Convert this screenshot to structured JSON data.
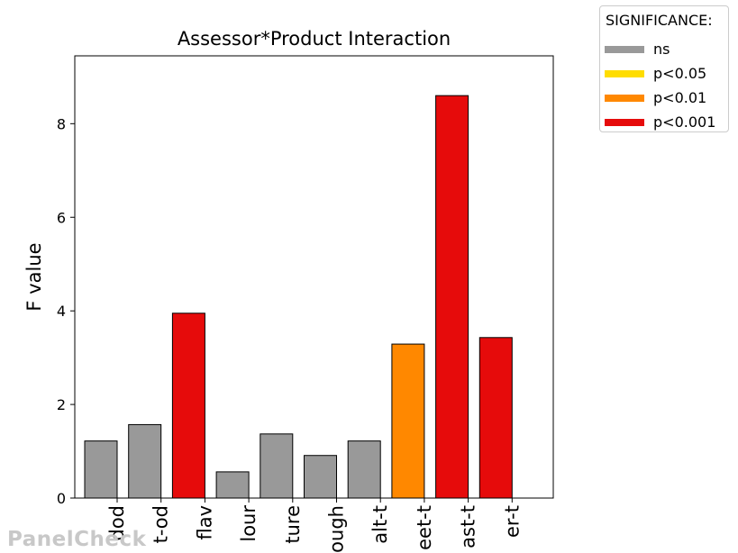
{
  "chart_data": {
    "type": "bar",
    "title": "Assessor*Product Interaction",
    "xlabel": "",
    "ylabel": "F value",
    "ylim": [
      0,
      9.45
    ],
    "yticks": [
      0,
      2,
      4,
      6,
      8
    ],
    "categories": [
      "...dod",
      "...t-od",
      "...flav",
      "...lour",
      "...ture",
      "...ough",
      "...alt-t",
      "...eet-t",
      "...ast-t",
      "...er-t"
    ],
    "tick_labels_visible": [
      "dod",
      "t-od",
      "flav",
      "lour",
      "ture",
      "ough",
      "alt-t",
      "eet-t",
      "ast-t",
      "er-t"
    ],
    "values": [
      1.22,
      1.57,
      3.95,
      0.56,
      1.37,
      0.91,
      1.22,
      3.29,
      8.6,
      3.43
    ],
    "significance": [
      "ns",
      "ns",
      "p<0.001",
      "ns",
      "ns",
      "ns",
      "ns",
      "p<0.01",
      "p<0.001",
      "p<0.001"
    ],
    "grid": false,
    "legend": {
      "title": "SIGNIFICANCE:",
      "placement": "outside-top-right",
      "entries": [
        {
          "label": "ns",
          "color": "#999999"
        },
        {
          "label": "p<0.05",
          "color": "#ffdd00"
        },
        {
          "label": "p<0.01",
          "color": "#ff8800"
        },
        {
          "label": "p<0.001",
          "color": "#e60b0b"
        }
      ]
    }
  },
  "watermark": "PanelCheck"
}
